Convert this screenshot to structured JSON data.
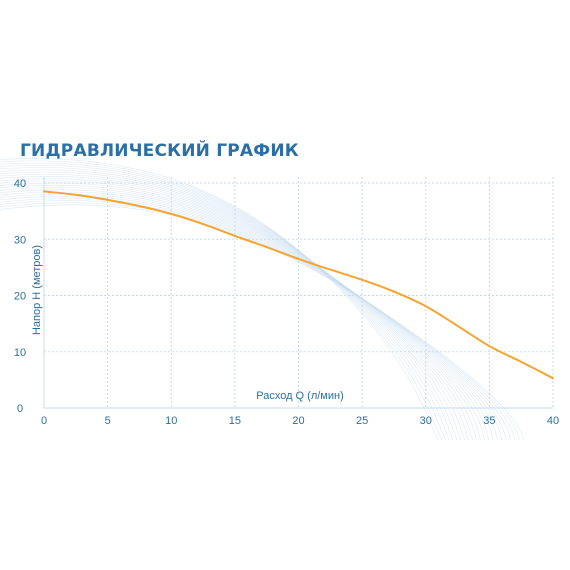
{
  "chart_data": {
    "type": "line",
    "title": "ГИДРАВЛИЧЕСКИЙ ГРАФИК",
    "xlabel": "Расход Q (л/мин)",
    "ylabel": "Напор H (метров)",
    "xlim": [
      0,
      40
    ],
    "ylim": [
      0,
      40
    ],
    "x_ticks": [
      "0",
      "5",
      "10",
      "15",
      "20",
      "25",
      "30",
      "35",
      "40"
    ],
    "y_ticks": [
      "0",
      "10",
      "20",
      "30",
      "40"
    ],
    "grid": true,
    "series": [
      {
        "x": [
          0,
          2.5,
          5,
          7.5,
          10,
          12.5,
          15,
          17.5,
          20,
          22.5,
          25,
          27.5,
          30,
          32.5,
          35,
          37.5,
          40
        ],
        "y": [
          38.5,
          37.9,
          37.0,
          35.9,
          34.5,
          32.7,
          30.6,
          28.6,
          26.5,
          24.6,
          22.8,
          20.7,
          18.1,
          14.6,
          11.0,
          8.2,
          5.3
        ]
      }
    ]
  },
  "colors": {
    "title": "#2a6fa5",
    "axis_text": "#2d6f9c",
    "grid": "#c9dbea",
    "curve": "#f5a432",
    "decoration": "#c8dcee"
  }
}
